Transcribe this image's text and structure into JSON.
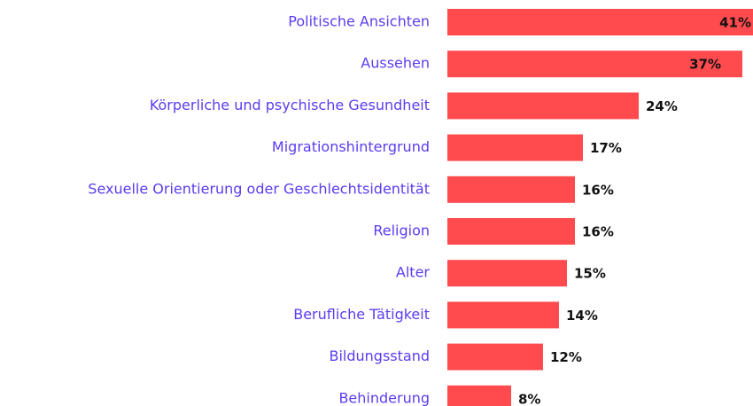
{
  "chart_data": {
    "type": "bar",
    "orientation": "horizontal",
    "color": "#ff4b4e",
    "categories": [
      "Politische Ansichten",
      "Aussehen",
      "Körperliche und psychische Gesundheit",
      "Migrationshintergrund",
      "Sexuelle Orientierung oder Geschlechtsidentität",
      "Religion",
      "Alter",
      "Berufliche Tätigkeit",
      "Bildungsstand",
      "Behinderung"
    ],
    "values": [
      41,
      37,
      24,
      17,
      16,
      16,
      15,
      14,
      12,
      8
    ],
    "value_labels": [
      "41%",
      "37%",
      "24%",
      "17%",
      "16%",
      "16%",
      "15%",
      "14%",
      "12%",
      "8%"
    ]
  }
}
